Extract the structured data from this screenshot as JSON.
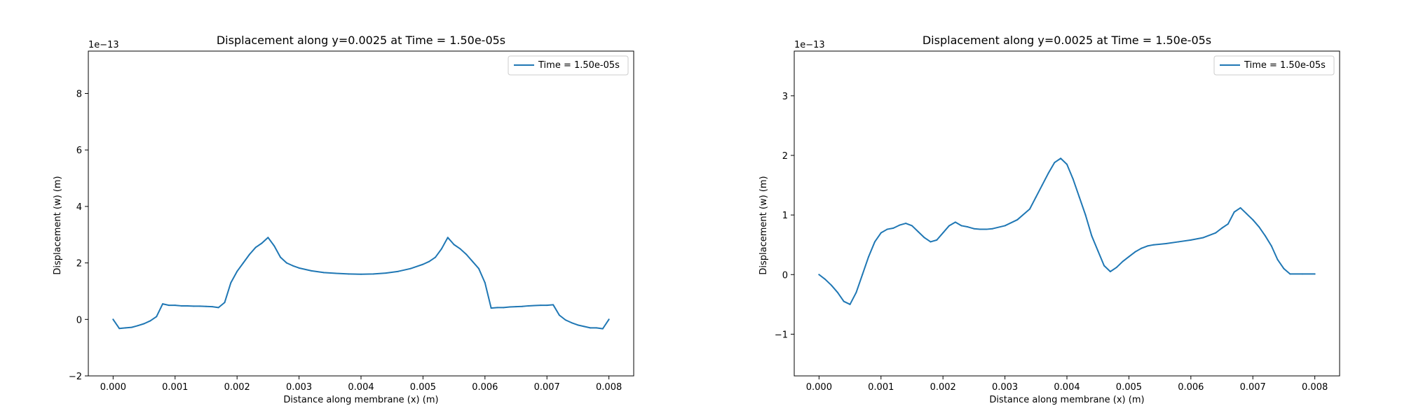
{
  "figure": {
    "background": "#ffffff",
    "line_color": "#1f77b4"
  },
  "chart_data": [
    {
      "type": "line",
      "title": "Displacement along y=0.0025 at Time = 1.50e-05s",
      "xlabel": "Distance along membrane (x) (m)",
      "ylabel": "Displacement (w) (m)",
      "y_scale_label": "1e−13",
      "xlim": [
        -0.0004,
        0.0084
      ],
      "ylim": [
        -2,
        9.5
      ],
      "xticks": [
        0,
        0.001,
        0.002,
        0.003,
        0.004,
        0.005,
        0.006,
        0.007,
        0.008
      ],
      "xtick_labels": [
        "0.000",
        "0.001",
        "0.002",
        "0.003",
        "0.004",
        "0.005",
        "0.006",
        "0.007",
        "0.008"
      ],
      "yticks": [
        -2,
        0,
        2,
        4,
        6,
        8
      ],
      "ytick_labels": [
        "−2",
        "0",
        "2",
        "4",
        "6",
        "8"
      ],
      "legend_position": "top-right",
      "series": [
        {
          "name": "Time = 1.50e-05s",
          "x": [
            0,
            0.0001,
            0.0002,
            0.0003,
            0.0004,
            0.0005,
            0.0006,
            0.0007,
            0.0008,
            0.0009,
            0.001,
            0.0011,
            0.0012,
            0.0013,
            0.0014,
            0.0015,
            0.0016,
            0.0017,
            0.0018,
            0.0019,
            0.002,
            0.0021,
            0.0022,
            0.0023,
            0.0024,
            0.0025,
            0.0026,
            0.0027,
            0.0028,
            0.0029,
            0.003,
            0.0032,
            0.0034,
            0.0036,
            0.0038,
            0.004,
            0.0042,
            0.0044,
            0.0046,
            0.0048,
            0.005,
            0.0051,
            0.0052,
            0.0053,
            0.0054,
            0.0055,
            0.0056,
            0.0057,
            0.0058,
            0.0059,
            0.006,
            0.0061,
            0.0062,
            0.0063,
            0.0064,
            0.0065,
            0.0066,
            0.0067,
            0.0068,
            0.0069,
            0.007,
            0.0071,
            0.0072,
            0.0073,
            0.0074,
            0.0075,
            0.0076,
            0.0077,
            0.0078,
            0.0079,
            0.008
          ],
          "values": [
            0,
            -0.32,
            -0.3,
            -0.28,
            -0.22,
            -0.15,
            -0.05,
            0.1,
            0.55,
            0.5,
            0.5,
            0.48,
            0.48,
            0.47,
            0.47,
            0.46,
            0.45,
            0.42,
            0.6,
            1.3,
            1.7,
            2.0,
            2.3,
            2.55,
            2.7,
            2.9,
            2.6,
            2.2,
            2.0,
            1.9,
            1.82,
            1.72,
            1.66,
            1.63,
            1.61,
            1.6,
            1.61,
            1.64,
            1.7,
            1.8,
            1.95,
            2.05,
            2.2,
            2.5,
            2.9,
            2.65,
            2.5,
            2.3,
            2.05,
            1.8,
            1.3,
            0.4,
            0.42,
            0.42,
            0.44,
            0.45,
            0.46,
            0.48,
            0.49,
            0.5,
            0.5,
            0.52,
            0.15,
            -0.02,
            -0.12,
            -0.2,
            -0.25,
            -0.3,
            -0.3,
            -0.33,
            0
          ]
        }
      ]
    },
    {
      "type": "line",
      "title": "Displacement along y=0.0025 at Time = 1.50e-05s",
      "xlabel": "Distance along membrane (x) (m)",
      "ylabel": "Displacement (w) (m)",
      "y_scale_label": "1e−13",
      "xlim": [
        -0.0004,
        0.0084
      ],
      "ylim": [
        -1.7,
        3.75
      ],
      "xticks": [
        0,
        0.001,
        0.002,
        0.003,
        0.004,
        0.005,
        0.006,
        0.007,
        0.008
      ],
      "xtick_labels": [
        "0.000",
        "0.001",
        "0.002",
        "0.003",
        "0.004",
        "0.005",
        "0.006",
        "0.007",
        "0.008"
      ],
      "yticks": [
        -1,
        0,
        1,
        2,
        3
      ],
      "ytick_labels": [
        "−1",
        "0",
        "1",
        "2",
        "3"
      ],
      "legend_position": "top-right",
      "series": [
        {
          "name": "Time = 1.50e-05s",
          "x": [
            0,
            0.0001,
            0.0002,
            0.0003,
            0.0004,
            0.0005,
            0.0006,
            0.0007,
            0.0008,
            0.0009,
            0.001,
            0.0011,
            0.0012,
            0.0013,
            0.0014,
            0.0015,
            0.0016,
            0.0017,
            0.0018,
            0.0019,
            0.002,
            0.0021,
            0.0022,
            0.0023,
            0.0024,
            0.0025,
            0.0026,
            0.0027,
            0.0028,
            0.003,
            0.0032,
            0.0034,
            0.0035,
            0.0036,
            0.0037,
            0.0038,
            0.0039,
            0.004,
            0.0041,
            0.0042,
            0.0043,
            0.0044,
            0.0045,
            0.0046,
            0.0047,
            0.0048,
            0.0049,
            0.005,
            0.0051,
            0.0052,
            0.0053,
            0.0054,
            0.0056,
            0.0058,
            0.006,
            0.0062,
            0.0064,
            0.0065,
            0.0066,
            0.0067,
            0.0068,
            0.0069,
            0.007,
            0.0071,
            0.0072,
            0.0073,
            0.0074,
            0.0075,
            0.0076,
            0.0078,
            0.008
          ],
          "values": [
            0,
            -0.08,
            -0.18,
            -0.3,
            -0.45,
            -0.5,
            -0.3,
            0,
            0.3,
            0.55,
            0.7,
            0.76,
            0.78,
            0.83,
            0.86,
            0.82,
            0.72,
            0.62,
            0.55,
            0.58,
            0.7,
            0.82,
            0.88,
            0.82,
            0.8,
            0.77,
            0.76,
            0.76,
            0.77,
            0.82,
            0.92,
            1.1,
            1.3,
            1.5,
            1.7,
            1.88,
            1.95,
            1.85,
            1.6,
            1.3,
            1.0,
            0.65,
            0.4,
            0.15,
            0.05,
            0.12,
            0.22,
            0.3,
            0.38,
            0.44,
            0.48,
            0.5,
            0.52,
            0.55,
            0.58,
            0.62,
            0.7,
            0.78,
            0.85,
            1.05,
            1.12,
            1.02,
            0.92,
            0.8,
            0.65,
            0.48,
            0.25,
            0.1,
            0.01,
            0.01,
            0.01
          ]
        }
      ]
    }
  ]
}
